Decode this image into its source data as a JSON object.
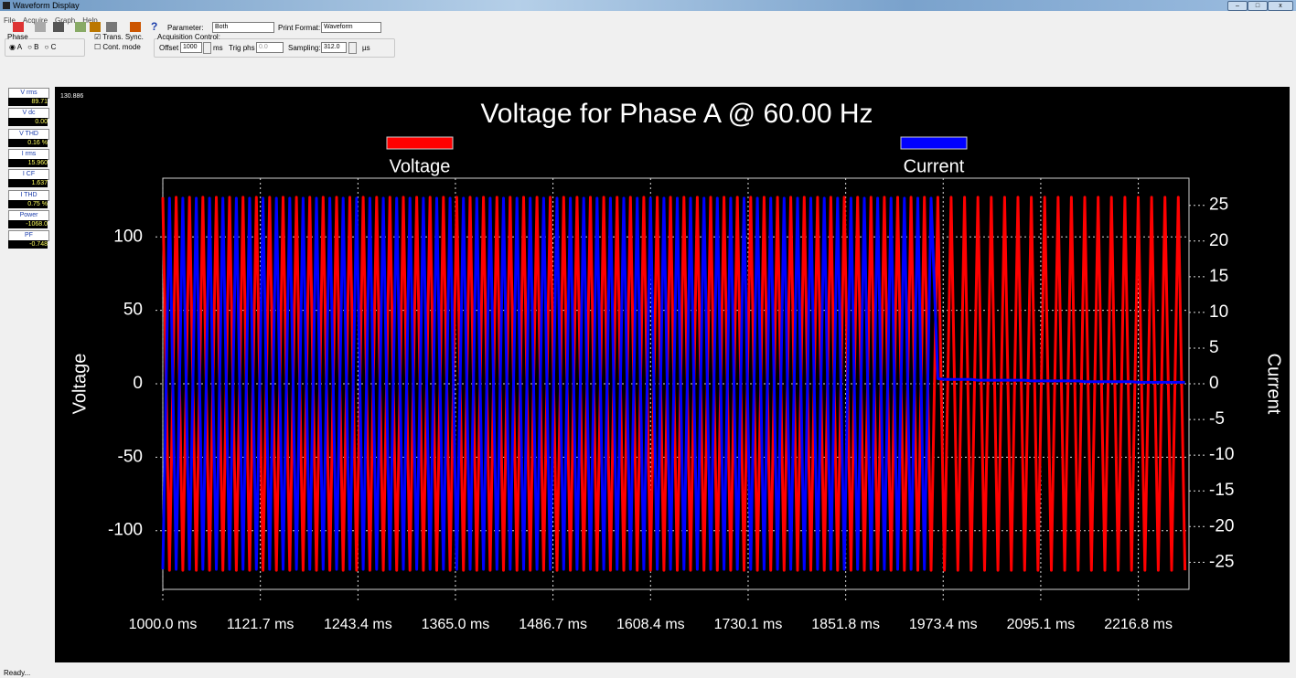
{
  "window": {
    "title": "Waveform Display"
  },
  "menu": [
    "File",
    "Acquire",
    "Graph",
    "Help"
  ],
  "toolbar": {
    "parameter_label": "Parameter:",
    "parameter_value": "Both",
    "print_format_label": "Print Format:",
    "print_format_value": "Waveform"
  },
  "phase": {
    "label": "Phase",
    "options": [
      "A",
      "B",
      "C"
    ]
  },
  "sync": [
    "Trans. Sync.",
    "Cont. mode"
  ],
  "acquisition": {
    "label": "Acquisition Control:",
    "offset_label": "Offset",
    "offset": "1000",
    "offset_unit": "ms",
    "trig_label": "Trig phs",
    "trig": "0.0",
    "sampling_label": "Sampling:",
    "sampling": "312.0",
    "sampling_unit": "µs"
  },
  "readouts": [
    {
      "label": "V rms",
      "value": "89.71"
    },
    {
      "label": "V dc",
      "value": "0.00"
    },
    {
      "label": "V THD",
      "value": "0.16 %"
    },
    {
      "label": "I rms",
      "value": "15.960"
    },
    {
      "label": "I CF",
      "value": "1.637"
    },
    {
      "label": "I THD",
      "value": "0.75 %"
    },
    {
      "label": "Power",
      "value": "-1068.0"
    },
    {
      "label": "PF",
      "value": "-0.748"
    }
  ],
  "status": "Ready...",
  "chart_data": {
    "type": "line",
    "title": "Voltage for Phase A @ 60.00 Hz",
    "corner_label": "130.886",
    "ylabel": "Voltage",
    "y2label": "Current",
    "xlim": [
      1000,
      2280
    ],
    "xticks": [
      {
        "value": 1000,
        "label": "1000.0 ms"
      },
      {
        "value": 1121.7,
        "label": "1121.7 ms"
      },
      {
        "value": 1243.4,
        "label": "1243.4 ms"
      },
      {
        "value": 1365.0,
        "label": "1365.0 ms"
      },
      {
        "value": 1486.7,
        "label": "1486.7 ms"
      },
      {
        "value": 1608.4,
        "label": "1608.4 ms"
      },
      {
        "value": 1730.1,
        "label": "1730.1 ms"
      },
      {
        "value": 1851.8,
        "label": "1851.8 ms"
      },
      {
        "value": 1973.4,
        "label": "1973.4 ms"
      },
      {
        "value": 2095.1,
        "label": "2095.1 ms"
      },
      {
        "value": 2216.8,
        "label": "2216.8 ms"
      }
    ],
    "ylim": [
      -140,
      140
    ],
    "yticks": [
      -100,
      -50,
      0,
      50,
      100
    ],
    "y2lim": [
      -28.8,
      28.8
    ],
    "y2ticks": [
      -25,
      -20,
      -15,
      -10,
      -5,
      0,
      5,
      10,
      15,
      20,
      25
    ],
    "grid": true,
    "x": [
      1000,
      1008.3,
      1016.7,
      1025,
      1033.3,
      1041.7,
      1050,
      1058.3,
      1066.7,
      1075,
      1083.3,
      1091.7,
      1100,
      1108.3,
      1116.7,
      1125,
      1133.3,
      1141.7,
      1150,
      1158.3,
      1166.7,
      1175,
      1183.3,
      1191.7,
      1200,
      1208.3,
      1216.7,
      1225,
      1233.3,
      1241.7,
      1250,
      1258.3,
      1266.7,
      1275,
      1283.3,
      1291.7,
      1300,
      1308.3,
      1316.7,
      1325,
      1333.3,
      1341.7,
      1350,
      1358.3,
      1366.7,
      1375,
      1383.3,
      1391.7,
      1400,
      1408.3,
      1416.7,
      1425,
      1433.3,
      1441.7,
      1450,
      1458.3,
      1466.7,
      1475,
      1483.3,
      1491.7,
      1500,
      1508.3,
      1516.7,
      1525,
      1533.3,
      1541.7,
      1550,
      1558.3,
      1566.7,
      1575,
      1583.3,
      1591.7,
      1600,
      1608.3,
      1616.7,
      1625,
      1633.3,
      1641.7,
      1650,
      1658.3,
      1666.7,
      1675,
      1683.3,
      1691.7,
      1700,
      1708.3,
      1716.7,
      1725,
      1733.3,
      1741.7,
      1750,
      1758.3,
      1766.7,
      1775,
      1783.3,
      1791.7,
      1800,
      1808.3,
      1816.7,
      1825,
      1833.3,
      1841.7,
      1850,
      1858.3,
      1866.7,
      1875,
      1883.3,
      1891.7,
      1900,
      1908.3,
      1916.7,
      1925,
      1933.3,
      1941.7,
      1950,
      1958.3,
      1966.7,
      1975,
      1983.3,
      1991.7,
      2000,
      2008.3,
      2016.7,
      2025,
      2033.3,
      2041.7,
      2050,
      2058.3,
      2066.7,
      2075,
      2083.3,
      2091.7,
      2100,
      2108.3,
      2116.7,
      2125,
      2133.3,
      2141.7,
      2150,
      2158.3,
      2166.7,
      2175,
      2183.3,
      2191.7,
      2200,
      2208.3,
      2216.7,
      2225,
      2233.3,
      2241.7,
      2250,
      2258.3,
      2266.7,
      2275
    ],
    "series": [
      {
        "name": "Voltage",
        "color": "#ff0000",
        "values": [
          127,
          -127,
          127,
          -127,
          127,
          -127,
          127,
          -127,
          127,
          -127,
          127,
          -127,
          127,
          -127,
          127,
          -127,
          127,
          -127,
          127,
          -127,
          127,
          -127,
          127,
          -127,
          127,
          -127,
          127,
          -127,
          127,
          -127,
          127,
          -127,
          127,
          -127,
          127,
          -127,
          127,
          -127,
          127,
          -127,
          127,
          -127,
          127,
          -127,
          127,
          -127,
          127,
          -127,
          127,
          -127,
          127,
          -127,
          127,
          -127,
          127,
          -127,
          127,
          -127,
          127,
          -127,
          127,
          -127,
          127,
          -127,
          127,
          -127,
          127,
          -127,
          127,
          -127,
          127,
          -127,
          127,
          -127,
          127,
          -127,
          127,
          -127,
          127,
          -127,
          127,
          -127,
          127,
          -127,
          127,
          -127,
          127,
          -127,
          127,
          -127,
          127,
          -127,
          127,
          -127,
          127,
          -127,
          127,
          -127,
          127,
          -127,
          127,
          -127,
          127,
          -127,
          127,
          -127,
          127,
          -127,
          127,
          -127,
          127,
          -127,
          127,
          -127,
          127,
          -127,
          127,
          -127,
          127,
          -127,
          127,
          -127,
          127,
          -127,
          127,
          -127,
          127,
          -127,
          127,
          -127,
          127,
          -127,
          127,
          -127,
          127,
          -127,
          127,
          -127,
          127,
          -127,
          127,
          -127,
          127,
          -127,
          127,
          -127,
          127,
          -127,
          127,
          -127,
          127,
          -127,
          127,
          -127
        ]
      },
      {
        "name": "Current",
        "color": "#0000ff",
        "axis": "y2",
        "values": [
          -26,
          26,
          -26,
          26,
          -26,
          26,
          -26,
          26,
          -26,
          26,
          -26,
          26,
          -26,
          26,
          -26,
          26,
          -26,
          26,
          -26,
          26,
          -26,
          26,
          -26,
          26,
          -26,
          26,
          -26,
          26,
          -26,
          26,
          -26,
          26,
          -26,
          26,
          -26,
          26,
          -26,
          26,
          -26,
          26,
          -26,
          26,
          -26,
          26,
          -26,
          26,
          -26,
          26,
          -26,
          26,
          -26,
          26,
          -26,
          26,
          -26,
          26,
          -26,
          26,
          -26,
          26,
          -26,
          26,
          -26,
          26,
          -26,
          26,
          -26,
          26,
          -26,
          26,
          -26,
          26,
          -26,
          26,
          -26,
          26,
          -26,
          26,
          -26,
          26,
          -26,
          26,
          -26,
          26,
          -26,
          26,
          -26,
          26,
          -26,
          26,
          -26,
          26,
          -26,
          26,
          -26,
          26,
          -26,
          26,
          -26,
          26,
          -26,
          26,
          -26,
          26,
          -26,
          26,
          -26,
          26,
          -26,
          26,
          -26,
          26,
          -26,
          26,
          -26,
          26,
          0.7,
          0.6,
          0.6,
          0.6,
          0.6,
          0.6,
          0.5,
          0.5,
          0.5,
          0.5,
          0.5,
          0.5,
          0.5,
          0.5,
          0.4,
          0.4,
          0.4,
          0.4,
          0.4,
          0.4,
          0.4,
          0.4,
          0.3,
          0.3,
          0.3,
          0.3,
          0.3,
          0.3,
          0.3,
          0.3,
          0.2,
          0.2,
          0.2,
          0.2,
          0.2,
          0.2,
          0.2,
          0.2
        ]
      }
    ]
  }
}
